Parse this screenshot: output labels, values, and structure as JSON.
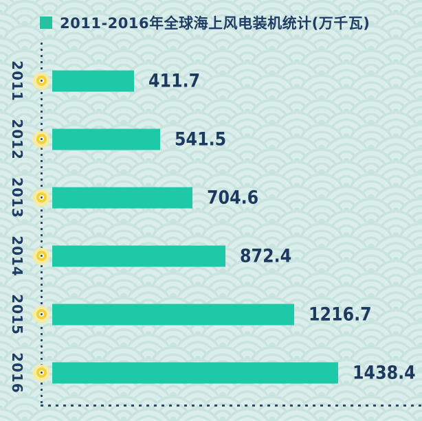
{
  "header": {
    "title": "2011-2016年全球海上风电装机统计(万千瓦)",
    "legend_marker": "teal-square"
  },
  "colors": {
    "background": "#d9edea",
    "pattern_line": "#c9e3df",
    "bar": "#1ec9a8",
    "legend_square": "#25c1a1",
    "text_navy": "#1e3c64",
    "axis_dotted": "#2b4a6b",
    "marker_gold": "#f2d337",
    "marker_halo": "#f6eba4"
  },
  "chart_data": {
    "type": "bar",
    "orientation": "horizontal",
    "title": "2011-2016年全球海上风电装机统计(万千瓦)",
    "unit": "万千瓦",
    "categories": [
      "2011",
      "2012",
      "2013",
      "2014",
      "2015",
      "2016"
    ],
    "values": [
      411.7,
      541.5,
      704.6,
      872.4,
      1216.7,
      1438.4
    ],
    "xlim": [
      0,
      1500
    ],
    "value_labels_shown": true,
    "axis_style": "dotted",
    "legend_position": "top-left",
    "grid": false
  }
}
